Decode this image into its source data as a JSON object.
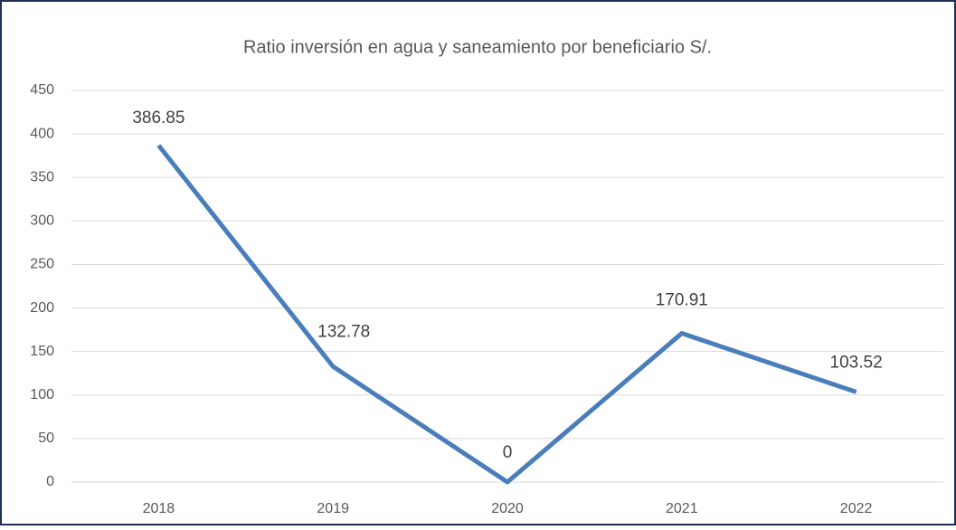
{
  "chart_data": {
    "type": "line",
    "title": "Ratio inversión en agua y saneamiento por beneficiario S/.",
    "categories": [
      "2018",
      "2019",
      "2020",
      "2021",
      "2022"
    ],
    "series": [
      {
        "name": "Ratio",
        "color": "#4a7ebb",
        "values": [
          386.85,
          132.78,
          0,
          170.91,
          103.52
        ]
      }
    ],
    "ylim": [
      0,
      450
    ],
    "yticks": [
      0,
      50,
      100,
      150,
      200,
      250,
      300,
      350,
      400,
      450
    ],
    "grid": true
  }
}
